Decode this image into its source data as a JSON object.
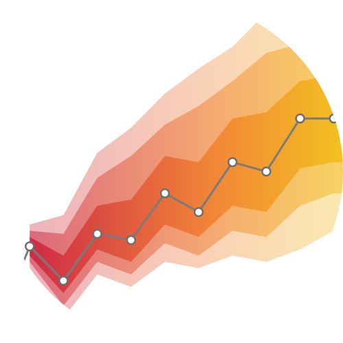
{
  "chart_data": {
    "type": "line",
    "title": "",
    "xlabel": "",
    "ylabel": "",
    "grid": false,
    "legend": "none",
    "x": [
      1,
      2,
      3,
      4,
      5,
      6,
      7,
      8,
      9,
      10
    ],
    "series": [
      {
        "values": [
          31,
          20,
          35,
          33,
          48,
          42,
          58,
          55,
          72,
          72
        ]
      }
    ],
    "fan_bands": [
      {
        "level": "outer",
        "lower": [
          24,
          8,
          22,
          18,
          26,
          24,
          28,
          26,
          30,
          36
        ],
        "upper": [
          38,
          41,
          61,
          69,
          80,
          88,
          95,
          106,
          106,
          106
        ]
      },
      {
        "level": "middle",
        "lower": [
          26,
          12,
          26,
          22,
          32,
          28,
          36,
          34,
          44,
          48
        ],
        "upper": [
          36,
          35,
          53,
          60,
          70,
          76,
          84,
          93,
          96,
          96
        ]
      },
      {
        "level": "inner",
        "lower": [
          28,
          16,
          30,
          26,
          38,
          34,
          44,
          42,
          56,
          58
        ],
        "upper": [
          34,
          28,
          44,
          46,
          60,
          58,
          72,
          74,
          84,
          86
        ]
      }
    ],
    "xlim": [
      0,
      11
    ],
    "ylim": [
      0,
      110
    ],
    "colors": {
      "line": "#7a7a7a",
      "marker_fill": "#ffffff",
      "marker_stroke": "#6e6e6e",
      "gradient_start": "#c8102e",
      "gradient_mid": "#f0781e",
      "gradient_end": "#f2c500"
    }
  }
}
